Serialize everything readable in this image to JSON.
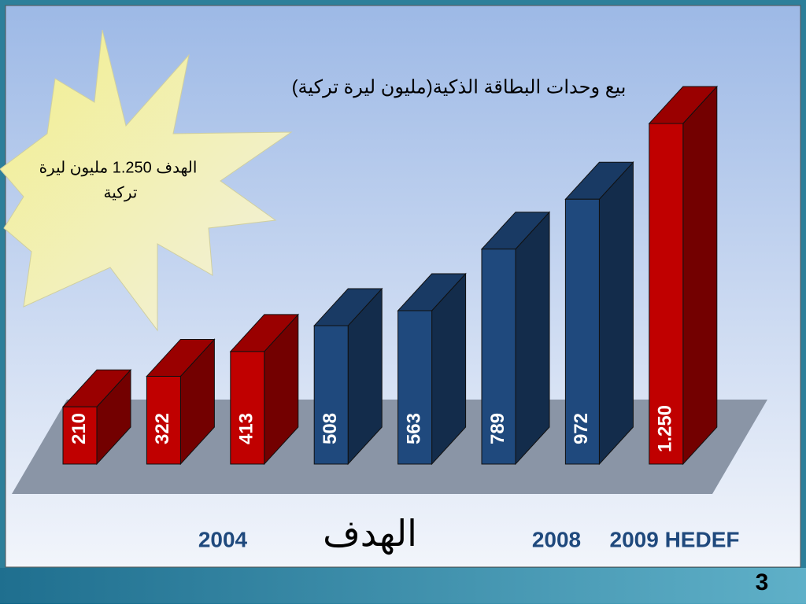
{
  "chart_data": {
    "type": "bar",
    "title": "بيع وحدات البطاقة الذكية(مليون ليرة تركية)",
    "categories": [
      null,
      null,
      null,
      null,
      null,
      null,
      null,
      null
    ],
    "values": [
      210,
      322,
      413,
      508,
      563,
      789,
      972,
      1250
    ],
    "value_labels": [
      "210",
      "322",
      "413",
      "508",
      "563",
      "789",
      "972",
      "1.250"
    ],
    "colors": [
      "#c00000",
      "#c00000",
      "#c00000",
      "#1f497d",
      "#1f497d",
      "#1f497d",
      "#1f497d",
      "#c00000"
    ],
    "annotations": [
      "2004",
      "الهدف",
      "2008",
      "2009 HEDEF"
    ],
    "callout": [
      "الهدف 1.250  مليون ليرة",
      "تركية"
    ]
  },
  "page_number": "3"
}
